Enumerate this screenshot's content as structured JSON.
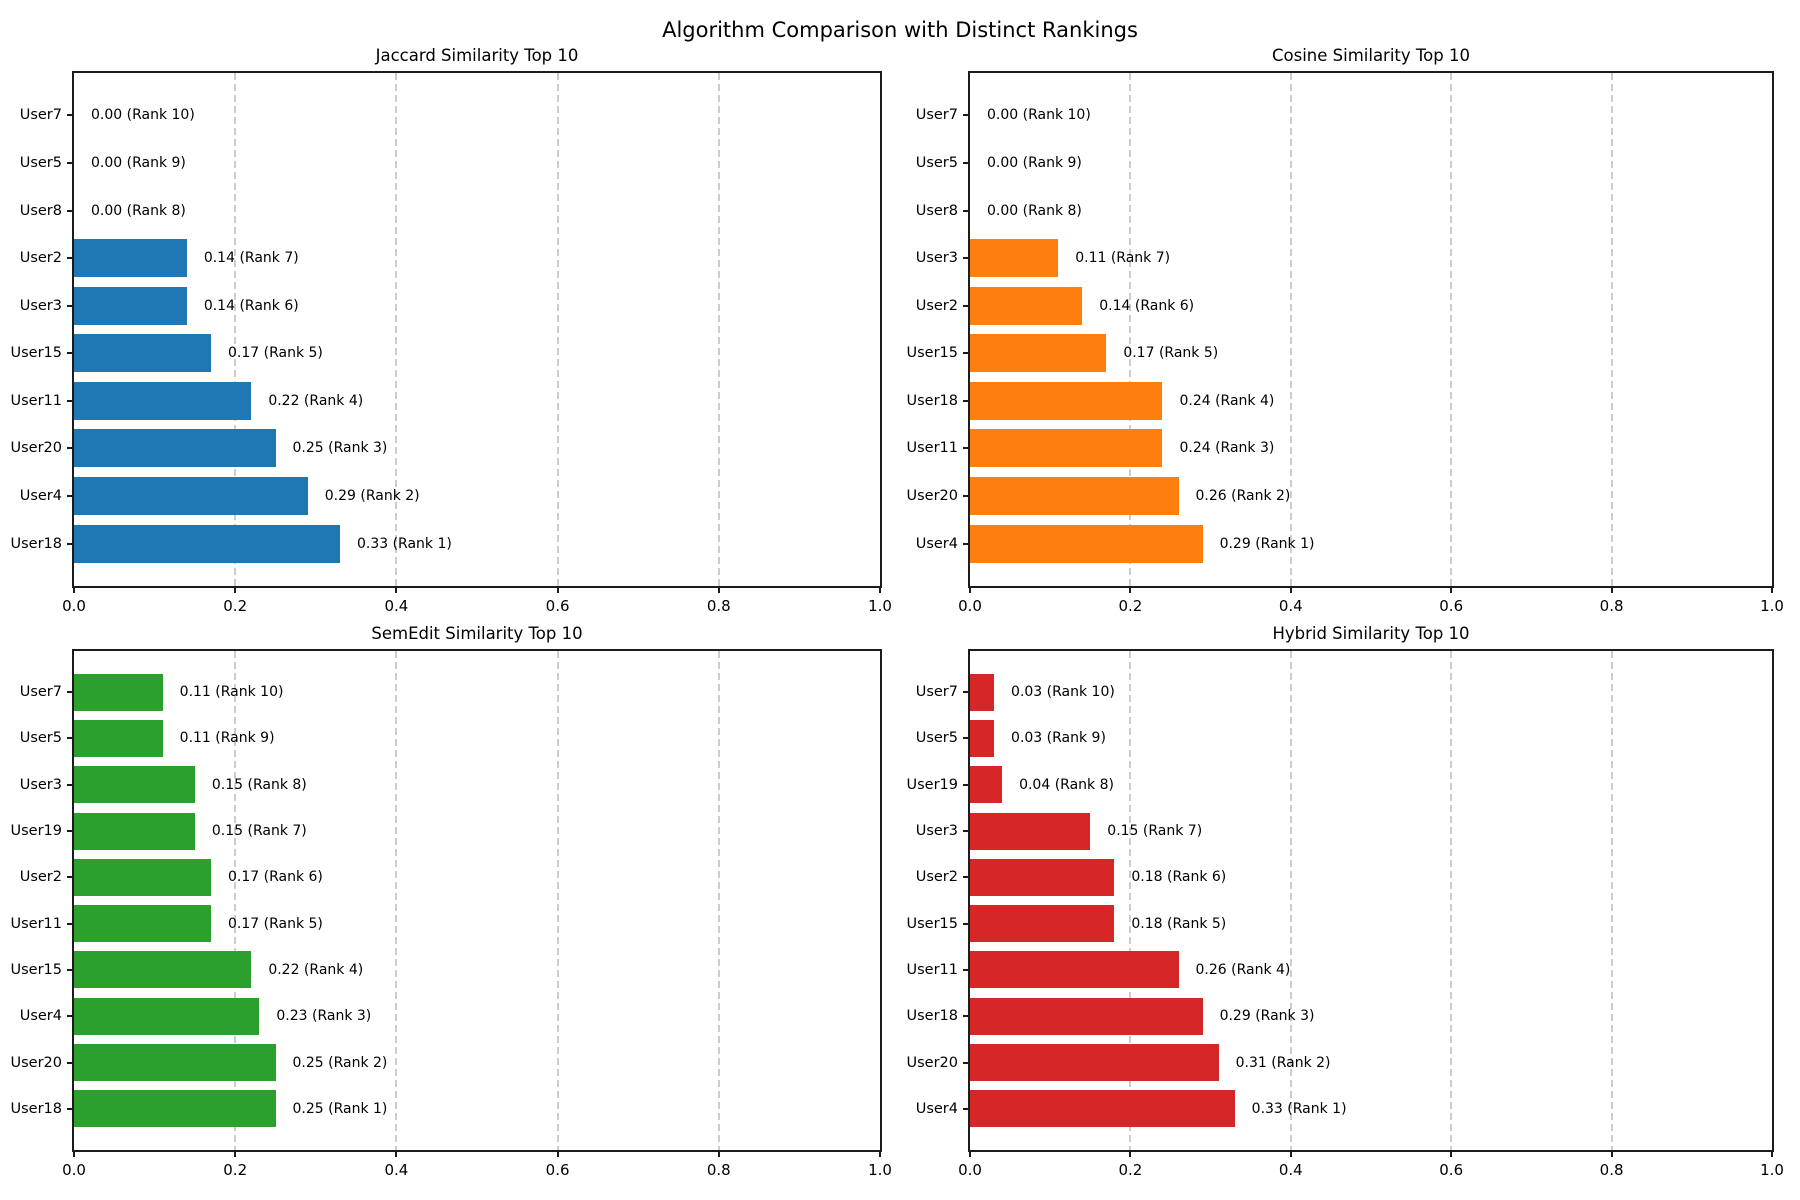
{
  "figure_title": "Algorithm Comparison with Distinct Rankings",
  "chart_data": [
    {
      "type": "bar",
      "orientation": "horizontal",
      "title": "Jaccard Similarity Top 10",
      "color": "#1f77b4",
      "xlim": [
        0.0,
        1.0
      ],
      "xticks": [
        {
          "label": "0.0",
          "value": 0.0
        },
        {
          "label": "0.2",
          "value": 0.2
        },
        {
          "label": "0.4",
          "value": 0.4
        },
        {
          "label": "0.6",
          "value": 0.6
        },
        {
          "label": "0.8",
          "value": 0.8
        },
        {
          "label": "1.0",
          "value": 1.0
        }
      ],
      "grid": "vertical-dashed",
      "bars_top_to_bottom": [
        {
          "user": "User7",
          "value": 0.0,
          "rank": 10,
          "label": "0.00 (Rank 10)"
        },
        {
          "user": "User5",
          "value": 0.0,
          "rank": 9,
          "label": "0.00 (Rank 9)"
        },
        {
          "user": "User8",
          "value": 0.0,
          "rank": 8,
          "label": "0.00 (Rank 8)"
        },
        {
          "user": "User2",
          "value": 0.14,
          "rank": 7,
          "label": "0.14 (Rank 7)"
        },
        {
          "user": "User3",
          "value": 0.14,
          "rank": 6,
          "label": "0.14 (Rank 6)"
        },
        {
          "user": "User15",
          "value": 0.17,
          "rank": 5,
          "label": "0.17 (Rank 5)"
        },
        {
          "user": "User11",
          "value": 0.22,
          "rank": 4,
          "label": "0.22 (Rank 4)"
        },
        {
          "user": "User20",
          "value": 0.25,
          "rank": 3,
          "label": "0.25 (Rank 3)"
        },
        {
          "user": "User4",
          "value": 0.29,
          "rank": 2,
          "label": "0.29 (Rank 2)"
        },
        {
          "user": "User18",
          "value": 0.33,
          "rank": 1,
          "label": "0.33 (Rank 1)"
        }
      ]
    },
    {
      "type": "bar",
      "orientation": "horizontal",
      "title": "Cosine Similarity Top 10",
      "color": "#ff7f0e",
      "xlim": [
        0.0,
        1.0
      ],
      "xticks": [
        {
          "label": "0.0",
          "value": 0.0
        },
        {
          "label": "0.2",
          "value": 0.2
        },
        {
          "label": "0.4",
          "value": 0.4
        },
        {
          "label": "0.6",
          "value": 0.6
        },
        {
          "label": "0.8",
          "value": 0.8
        },
        {
          "label": "1.0",
          "value": 1.0
        }
      ],
      "grid": "vertical-dashed",
      "bars_top_to_bottom": [
        {
          "user": "User7",
          "value": 0.0,
          "rank": 10,
          "label": "0.00 (Rank 10)"
        },
        {
          "user": "User5",
          "value": 0.0,
          "rank": 9,
          "label": "0.00 (Rank 9)"
        },
        {
          "user": "User8",
          "value": 0.0,
          "rank": 8,
          "label": "0.00 (Rank 8)"
        },
        {
          "user": "User3",
          "value": 0.11,
          "rank": 7,
          "label": "0.11 (Rank 7)"
        },
        {
          "user": "User2",
          "value": 0.14,
          "rank": 6,
          "label": "0.14 (Rank 6)"
        },
        {
          "user": "User15",
          "value": 0.17,
          "rank": 5,
          "label": "0.17 (Rank 5)"
        },
        {
          "user": "User18",
          "value": 0.24,
          "rank": 4,
          "label": "0.24 (Rank 4)"
        },
        {
          "user": "User11",
          "value": 0.24,
          "rank": 3,
          "label": "0.24 (Rank 3)"
        },
        {
          "user": "User20",
          "value": 0.26,
          "rank": 2,
          "label": "0.26 (Rank 2)"
        },
        {
          "user": "User4",
          "value": 0.29,
          "rank": 1,
          "label": "0.29 (Rank 1)"
        }
      ]
    },
    {
      "type": "bar",
      "orientation": "horizontal",
      "title": "SemEdit Similarity Top 10",
      "color": "#2ca02c",
      "xlim": [
        0.0,
        1.0
      ],
      "xticks": [
        {
          "label": "0.0",
          "value": 0.0
        },
        {
          "label": "0.2",
          "value": 0.2
        },
        {
          "label": "0.4",
          "value": 0.4
        },
        {
          "label": "0.6",
          "value": 0.6
        },
        {
          "label": "0.8",
          "value": 0.8
        },
        {
          "label": "1.0",
          "value": 1.0
        }
      ],
      "grid": "vertical-dashed",
      "bars_top_to_bottom": [
        {
          "user": "User7",
          "value": 0.11,
          "rank": 10,
          "label": "0.11 (Rank 10)"
        },
        {
          "user": "User5",
          "value": 0.11,
          "rank": 9,
          "label": "0.11 (Rank 9)"
        },
        {
          "user": "User3",
          "value": 0.15,
          "rank": 8,
          "label": "0.15 (Rank 8)"
        },
        {
          "user": "User19",
          "value": 0.15,
          "rank": 7,
          "label": "0.15 (Rank 7)"
        },
        {
          "user": "User2",
          "value": 0.17,
          "rank": 6,
          "label": "0.17 (Rank 6)"
        },
        {
          "user": "User11",
          "value": 0.17,
          "rank": 5,
          "label": "0.17 (Rank 5)"
        },
        {
          "user": "User15",
          "value": 0.22,
          "rank": 4,
          "label": "0.22 (Rank 4)"
        },
        {
          "user": "User4",
          "value": 0.23,
          "rank": 3,
          "label": "0.23 (Rank 3)"
        },
        {
          "user": "User20",
          "value": 0.25,
          "rank": 2,
          "label": "0.25 (Rank 2)"
        },
        {
          "user": "User18",
          "value": 0.25,
          "rank": 1,
          "label": "0.25 (Rank 1)"
        }
      ]
    },
    {
      "type": "bar",
      "orientation": "horizontal",
      "title": "Hybrid Similarity Top 10",
      "color": "#d62728",
      "xlim": [
        0.0,
        1.0
      ],
      "xticks": [
        {
          "label": "0.0",
          "value": 0.0
        },
        {
          "label": "0.2",
          "value": 0.2
        },
        {
          "label": "0.4",
          "value": 0.4
        },
        {
          "label": "0.6",
          "value": 0.6
        },
        {
          "label": "0.8",
          "value": 0.8
        },
        {
          "label": "1.0",
          "value": 1.0
        }
      ],
      "grid": "vertical-dashed",
      "bars_top_to_bottom": [
        {
          "user": "User7",
          "value": 0.03,
          "rank": 10,
          "label": "0.03 (Rank 10)"
        },
        {
          "user": "User5",
          "value": 0.03,
          "rank": 9,
          "label": "0.03 (Rank 9)"
        },
        {
          "user": "User19",
          "value": 0.04,
          "rank": 8,
          "label": "0.04 (Rank 8)"
        },
        {
          "user": "User3",
          "value": 0.15,
          "rank": 7,
          "label": "0.15 (Rank 7)"
        },
        {
          "user": "User2",
          "value": 0.18,
          "rank": 6,
          "label": "0.18 (Rank 6)"
        },
        {
          "user": "User15",
          "value": 0.18,
          "rank": 5,
          "label": "0.18 (Rank 5)"
        },
        {
          "user": "User11",
          "value": 0.26,
          "rank": 4,
          "label": "0.26 (Rank 4)"
        },
        {
          "user": "User18",
          "value": 0.29,
          "rank": 3,
          "label": "0.29 (Rank 3)"
        },
        {
          "user": "User20",
          "value": 0.31,
          "rank": 2,
          "label": "0.31 (Rank 2)"
        },
        {
          "user": "User4",
          "value": 0.33,
          "rank": 1,
          "label": "0.33 (Rank 1)"
        }
      ]
    }
  ]
}
